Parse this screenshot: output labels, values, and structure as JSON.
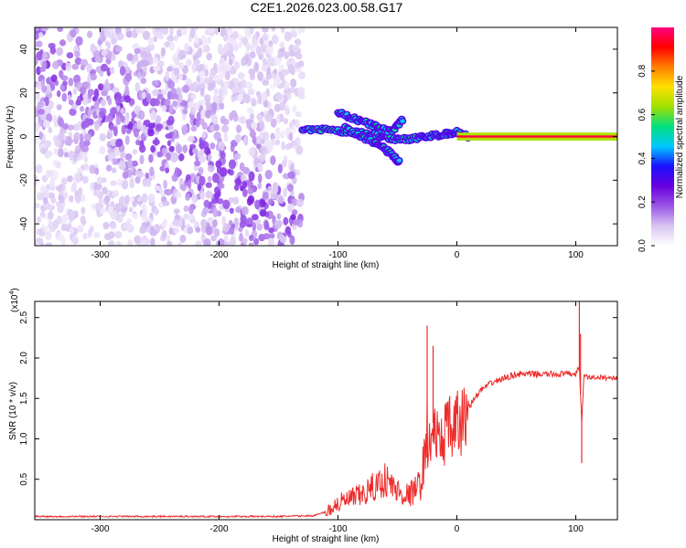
{
  "title": "C2E1.2026.023.00.58.G17",
  "chart_data": [
    {
      "type": "heatmap",
      "title": "C2E1.2026.023.00.58.G17",
      "xlabel": "Height of straight line (km)",
      "ylabel": "Frequency (Hz)",
      "xlim": [
        -355,
        135
      ],
      "ylim": [
        -50,
        50
      ],
      "x_ticks": [
        -300,
        -200,
        -100,
        0,
        100
      ],
      "y_ticks": [
        -40,
        -20,
        0,
        20,
        40
      ],
      "colorbar": {
        "label": "Normalized spectral amplitude",
        "range": [
          0.0,
          1.0
        ],
        "ticks": [
          0.0,
          0.2,
          0.4,
          0.6,
          0.8
        ],
        "tick_labels": [
          "0.0",
          "0.2",
          "0.4",
          "0.6",
          "0.8"
        ],
        "colors": [
          "#ffffff",
          "#d8c4f2",
          "#9a55e6",
          "#6a00e0",
          "#1a10ff",
          "#00c8ff",
          "#00e080",
          "#a0e000",
          "#ffe000",
          "#ff8000",
          "#ff0000",
          "#ff0080"
        ]
      },
      "regions": [
        {
          "name": "noisy purple speckle",
          "x_range": [
            -355,
            -130
          ],
          "y_range": [
            -50,
            50
          ],
          "amplitude": 0.2
        },
        {
          "name": "signal tracks",
          "x_range": [
            -130,
            10
          ],
          "y_range": [
            -15,
            15
          ],
          "amplitude": 0.45
        },
        {
          "name": "steady carrier line",
          "x_range": [
            0,
            135
          ],
          "y_range": [
            -1,
            1
          ],
          "amplitude": 0.95
        }
      ],
      "tracks": [
        {
          "name": "main",
          "x": [
            -130,
            -110,
            -90,
            -70,
            -55,
            -40,
            -25,
            -10,
            0,
            10
          ],
          "y": [
            3,
            3,
            2,
            1,
            -1,
            -1,
            0,
            1,
            2,
            0
          ]
        },
        {
          "name": "upper branch",
          "x": [
            -100,
            -85,
            -70,
            -55,
            -45
          ],
          "y": [
            11,
            8,
            5,
            2,
            8
          ]
        },
        {
          "name": "lower branch",
          "x": [
            -95,
            -80,
            -65,
            -55,
            -48
          ],
          "y": [
            4,
            0,
            -4,
            -8,
            -12
          ]
        }
      ]
    },
    {
      "type": "line",
      "xlabel": "Height of straight line (km)",
      "ylabel": "SNR (10 * v/v)",
      "y_scale_label": "(x10",
      "y_scale_exp": "4",
      "xlim": [
        -355,
        135
      ],
      "ylim": [
        0,
        2.7
      ],
      "x_ticks": [
        -300,
        -200,
        -100,
        0,
        100
      ],
      "y_ticks": [
        0.5,
        1.0,
        1.5,
        2.0,
        2.5
      ],
      "color": "#ee2a2a",
      "series": [
        {
          "name": "SNR",
          "x": [
            -355,
            -300,
            -250,
            -200,
            -150,
            -120,
            -110,
            -100,
            -90,
            -80,
            -70,
            -60,
            -50,
            -40,
            -30,
            -25,
            -22,
            -20,
            -15,
            -10,
            -5,
            0,
            5,
            10,
            20,
            30,
            40,
            50,
            60,
            70,
            80,
            90,
            100,
            103,
            105,
            107,
            110,
            120,
            135
          ],
          "y": [
            0.04,
            0.04,
            0.04,
            0.04,
            0.04,
            0.05,
            0.1,
            0.2,
            0.25,
            0.3,
            0.4,
            0.5,
            0.35,
            0.3,
            0.45,
            1.1,
            0.8,
            1.2,
            0.9,
            1.1,
            1.1,
            1.15,
            1.2,
            1.4,
            1.6,
            1.7,
            1.75,
            1.8,
            1.8,
            1.8,
            1.8,
            1.8,
            1.8,
            1.9,
            1.2,
            1.8,
            1.76,
            1.76,
            1.75
          ]
        },
        {
          "name": "spikes",
          "x": [
            -25,
            -20,
            103,
            104,
            105
          ],
          "y": [
            2.4,
            2.15,
            2.7,
            2.3,
            0.7
          ]
        }
      ]
    }
  ]
}
